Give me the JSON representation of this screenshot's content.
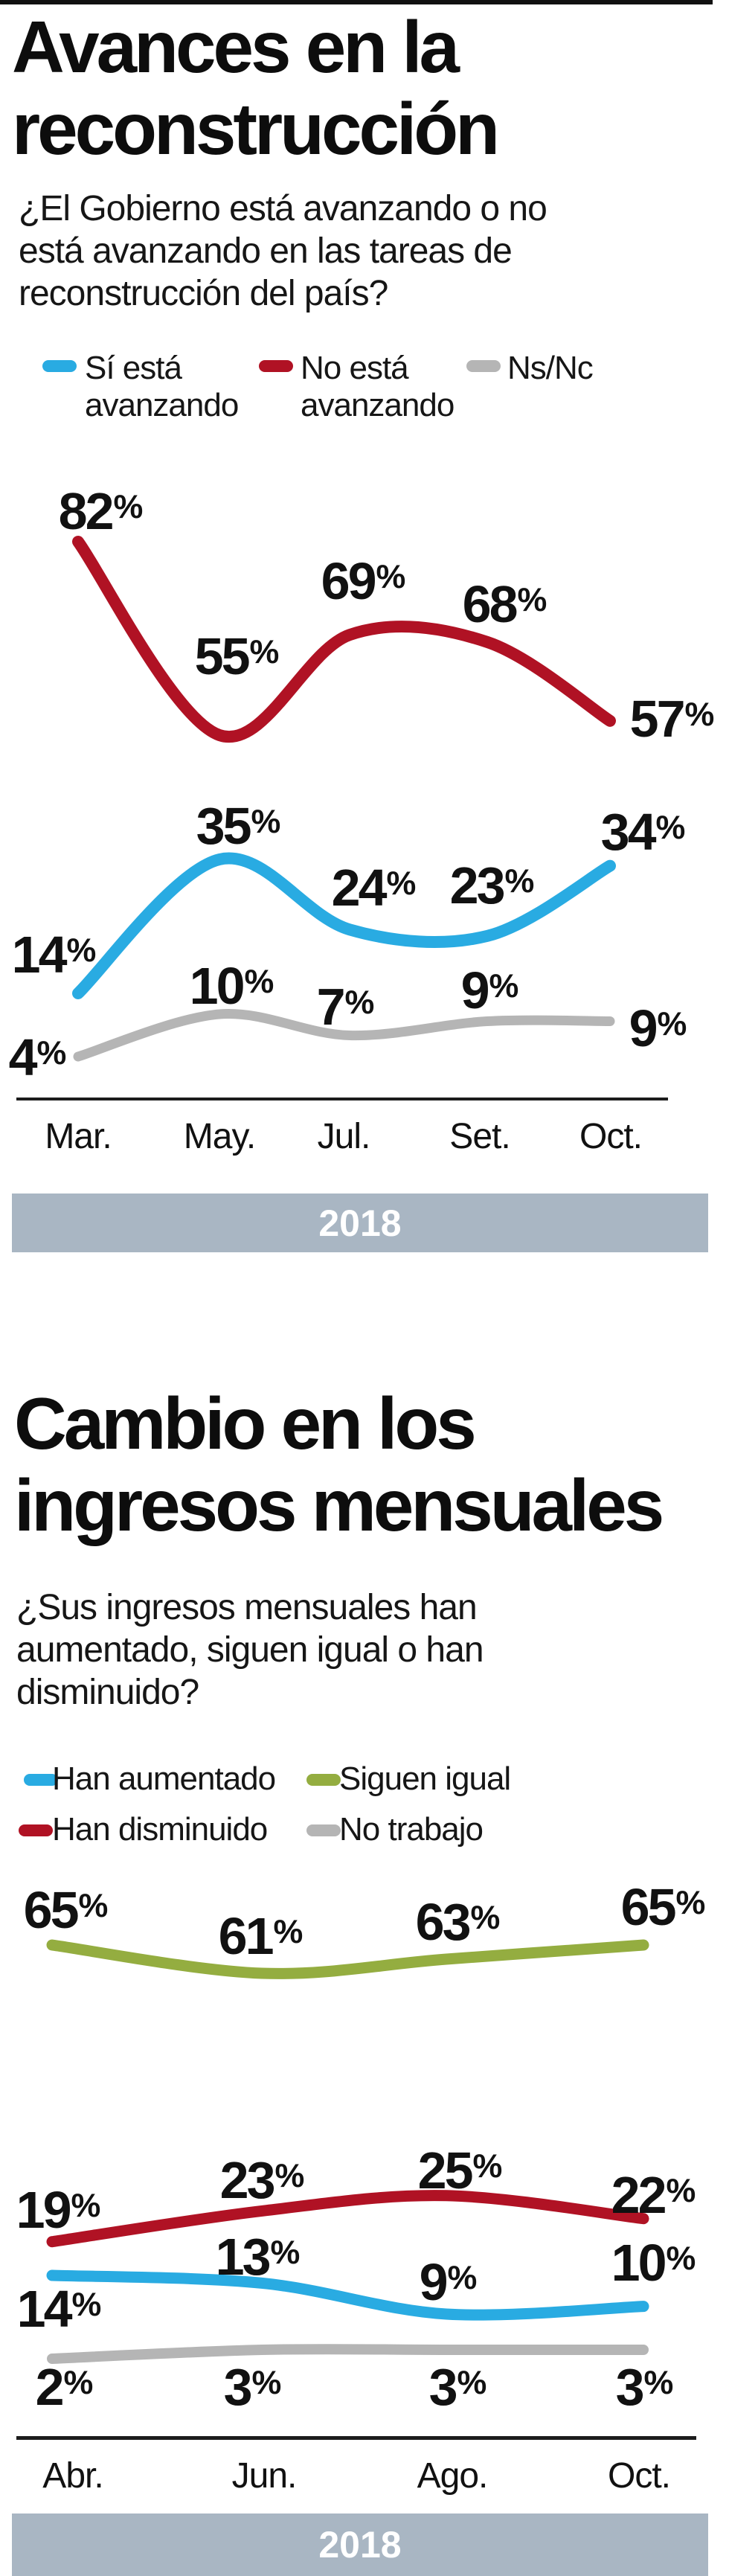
{
  "top_bar": {
    "color": "#111111"
  },
  "chart_data": [
    {
      "type": "line",
      "title_lines": [
        "Avances en la",
        "reconstrucción"
      ],
      "question_lines": [
        "¿El Gobierno está avanzando o no",
        "está avanzando en las tareas de",
        "reconstrucción del país?"
      ],
      "categories": [
        "Mar.",
        "May.",
        "Jul.",
        "Set.",
        "Oct."
      ],
      "year_label": "2018",
      "year_band_color": "#a9b6c3",
      "unit": "%",
      "legend": [
        {
          "label_lines": [
            "Sí está",
            "avanzando"
          ],
          "color": "#29abe2"
        },
        {
          "label_lines": [
            "No está",
            "avanzando"
          ],
          "color": "#b01224"
        },
        {
          "label_lines": [
            "Ns/Nc"
          ],
          "color": "#b5b5b5"
        }
      ],
      "series": [
        {
          "name": "Sí está avanzando",
          "color": "#29abe2",
          "values": [
            14,
            35,
            24,
            23,
            34
          ]
        },
        {
          "name": "No está avanzando",
          "color": "#b01224",
          "values": [
            82,
            55,
            69,
            68,
            57
          ]
        },
        {
          "name": "Ns/Nc",
          "color": "#b5b5b5",
          "values": [
            4,
            10,
            7,
            9,
            9
          ]
        }
      ]
    },
    {
      "type": "line",
      "title_lines": [
        "Cambio en los",
        "ingresos mensuales"
      ],
      "question_lines": [
        "¿Sus ingresos mensuales han",
        "aumentado, siguen igual o han",
        "disminuido?"
      ],
      "categories": [
        "Abr.",
        "Jun.",
        "Ago.",
        "Oct."
      ],
      "year_label": "2018",
      "year_band_color": "#a9b6c3",
      "unit": "%",
      "legend": [
        {
          "label_lines": [
            "Han aumentado"
          ],
          "color": "#29abe2"
        },
        {
          "label_lines": [
            "Siguen igual"
          ],
          "color": "#94ad40"
        },
        {
          "label_lines": [
            "Han disminuido"
          ],
          "color": "#b01224"
        },
        {
          "label_lines": [
            "No trabajo"
          ],
          "color": "#b5b5b5"
        }
      ],
      "series": [
        {
          "name": "Han aumentado",
          "color": "#29abe2",
          "values": [
            14,
            13,
            9,
            10
          ]
        },
        {
          "name": "Siguen igual",
          "color": "#94ad40",
          "values": [
            65,
            61,
            63,
            65
          ]
        },
        {
          "name": "Han disminuido",
          "color": "#b01224",
          "values": [
            19,
            23,
            25,
            22
          ]
        },
        {
          "name": "No trabajo",
          "color": "#b5b5b5",
          "values": [
            2,
            3,
            3,
            3
          ]
        }
      ]
    }
  ]
}
